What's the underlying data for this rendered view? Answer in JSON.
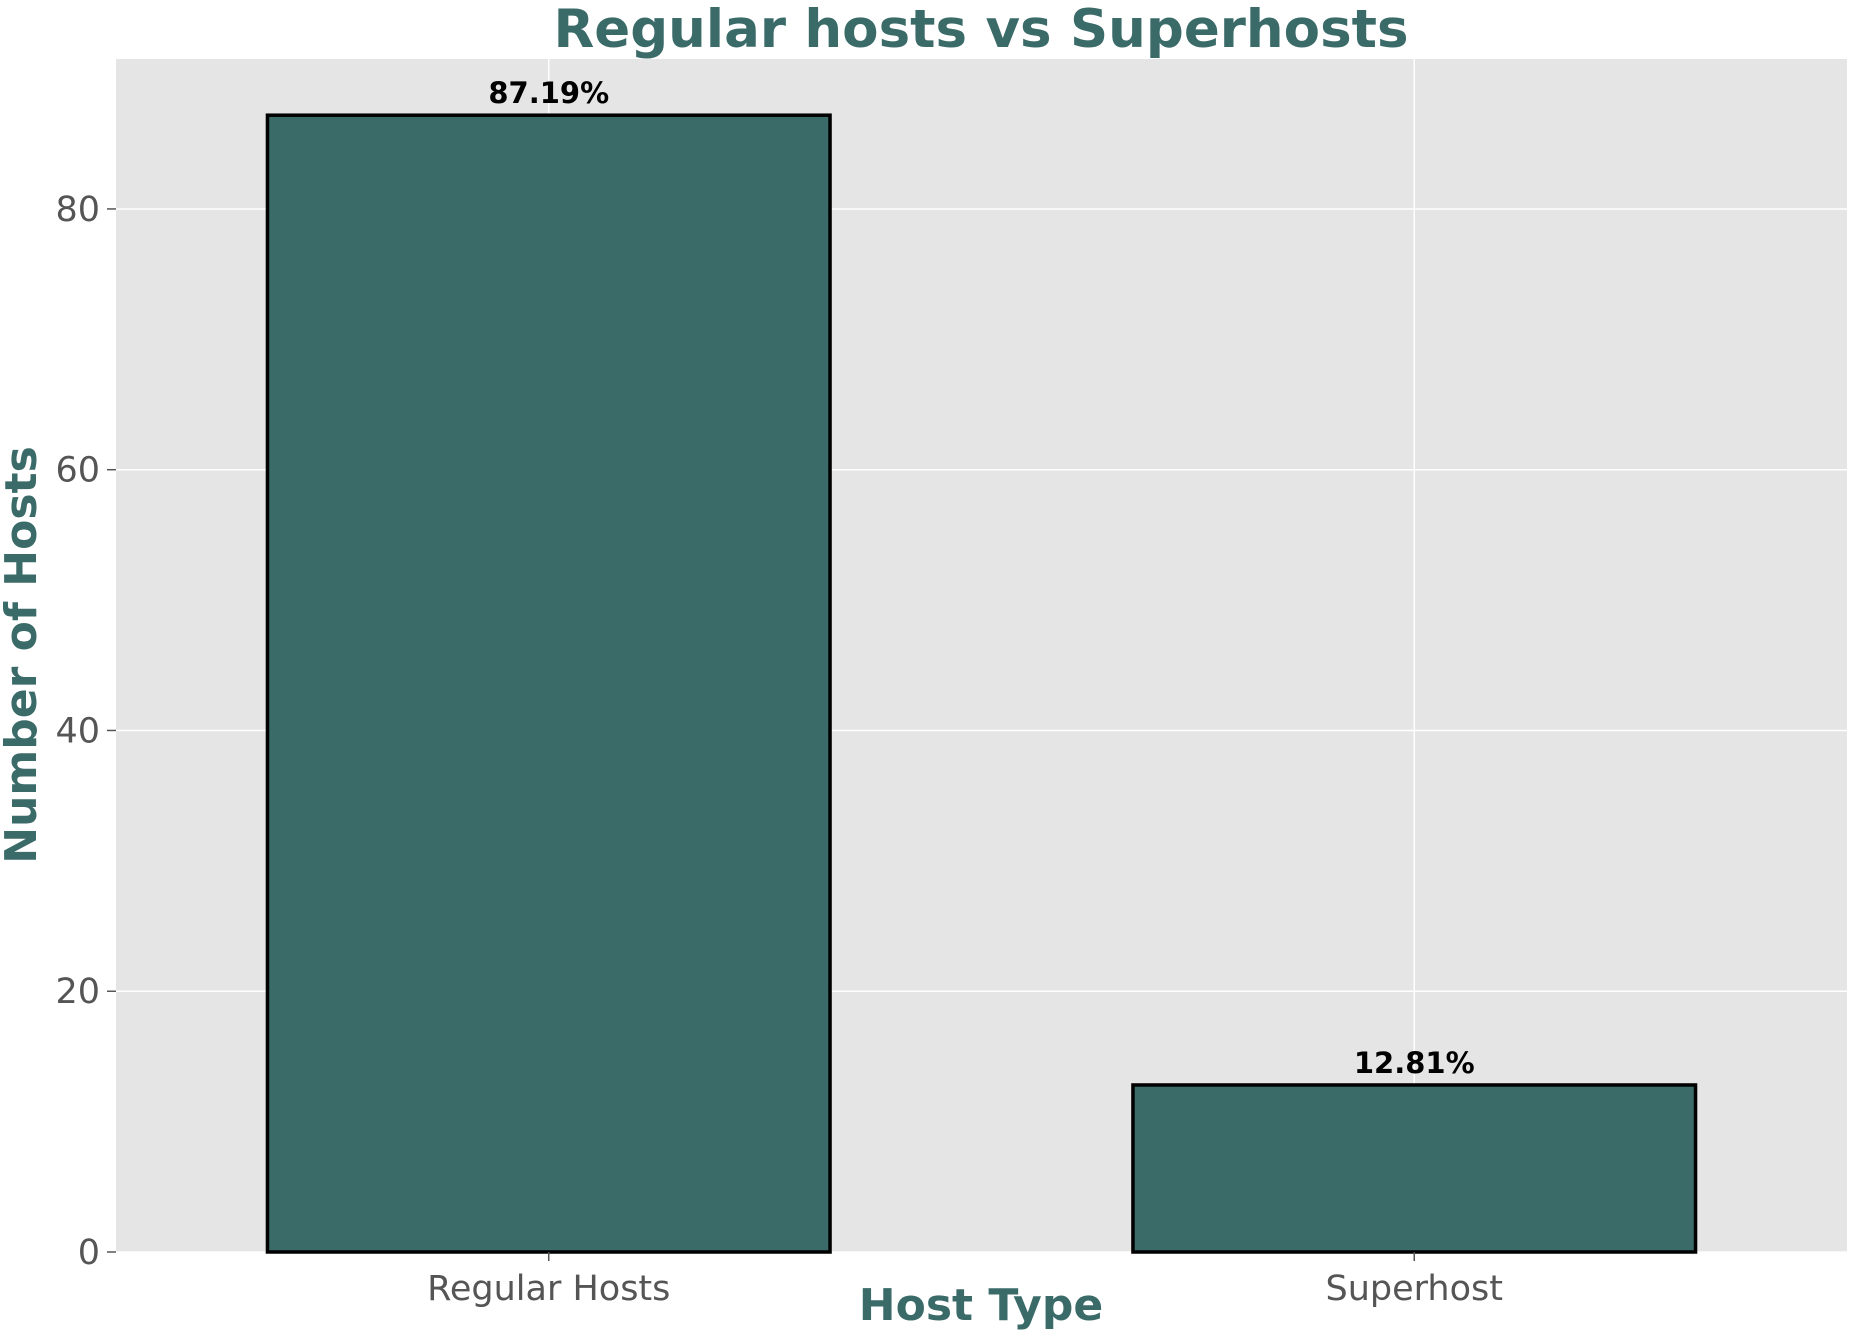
{
  "chart_data": {
    "type": "bar",
    "title": "Regular hosts vs Superhosts",
    "xlabel": "Host Type",
    "ylabel": "Number of Hosts",
    "categories": [
      "Regular Hosts",
      "Superhost"
    ],
    "values": [
      87.19,
      12.81
    ],
    "data_labels": [
      "87.19%",
      "12.81%"
    ],
    "ylim": [
      0,
      91.5
    ],
    "yticks": [
      0,
      20,
      40,
      60,
      80
    ],
    "grid": true,
    "legend": "none"
  },
  "colors": {
    "bar_fill": "#3a6b69",
    "bar_edge": "#000000",
    "plot_background": "#e5e5e5",
    "grid": "#ffffff",
    "title": "#3a6b69",
    "axis_title": "#3a6b69",
    "tick_label": "#555555"
  }
}
